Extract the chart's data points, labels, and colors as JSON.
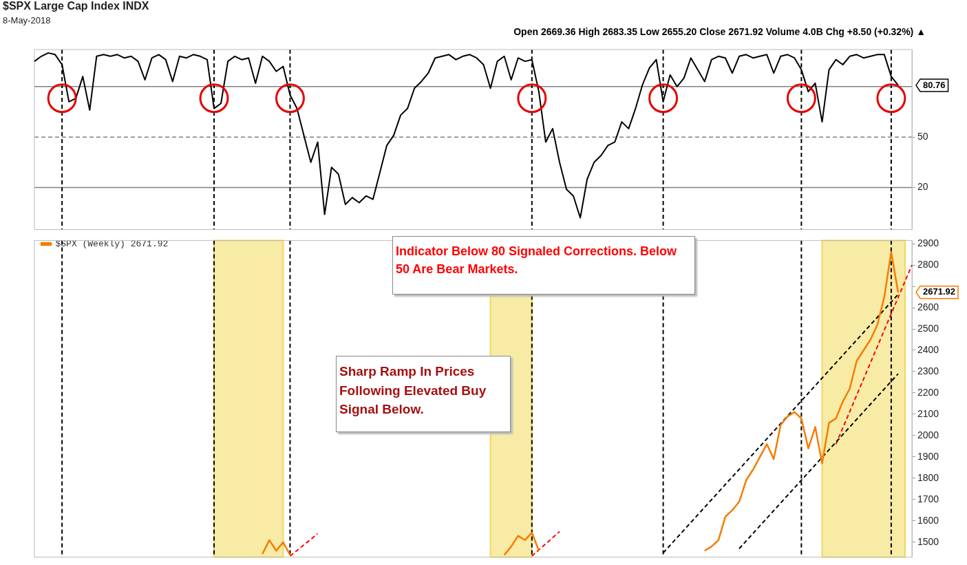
{
  "chart_data": [
    {
      "type": "line",
      "title": "$SPX Large Cap Index INDX",
      "subtitle": "8-May-2018",
      "annotations": [
        "Open 2669.36 High 2683.35 Low 2655.20 Close 2671.92 Volume 4.0B Chg +8.50 (+0.32%) ▲",
        "Indicator Below 80 Signaled Corrections. Below 50 Are Bear Markets.",
        "80.76"
      ],
      "categories": [
        null,
        null,
        null,
        null,
        null,
        null,
        null,
        null,
        null,
        null,
        null,
        null,
        null,
        null,
        null,
        null,
        null,
        null,
        null,
        null,
        null,
        null,
        null,
        null,
        null,
        null,
        null,
        null,
        null,
        null,
        null,
        null,
        null,
        null,
        null,
        null,
        null,
        null,
        null,
        null,
        null,
        null,
        null,
        null,
        null,
        null,
        null,
        null,
        null,
        null,
        null,
        null,
        null,
        null,
        null,
        null,
        null,
        null,
        null,
        null,
        null,
        null,
        null,
        null,
        null,
        null,
        null,
        null,
        null,
        null,
        null,
        null,
        null,
        null,
        null,
        null,
        null,
        null,
        null,
        null,
        null,
        null,
        null,
        null,
        null,
        null,
        null,
        null,
        null,
        null,
        null,
        null,
        null,
        null,
        null,
        null,
        null,
        null,
        null,
        null,
        null,
        null,
        null,
        null,
        null,
        null,
        null,
        null,
        null,
        null,
        null,
        null,
        null,
        null,
        null,
        null,
        null,
        null,
        null,
        null,
        null,
        null,
        null,
        null,
        null,
        null,
        null,
        null
      ],
      "series": [
        {
          "color": "#000000",
          "values": [
            95,
            98,
            100,
            99,
            93,
            71,
            73,
            86,
            66,
            98,
            99,
            98,
            99,
            97,
            98,
            95,
            84,
            97,
            99,
            96,
            83,
            98,
            97,
            99,
            98,
            96,
            67,
            70,
            95,
            98,
            96,
            97,
            82,
            98,
            95,
            89,
            92,
            75,
            67,
            51,
            35,
            47,
            4,
            32,
            28,
            10,
            14,
            11,
            15,
            13,
            29,
            45,
            51,
            63,
            67,
            79,
            83,
            88,
            97,
            98,
            99,
            96,
            98,
            99,
            97,
            93,
            79,
            95,
            98,
            84,
            97,
            95,
            96,
            77,
            47,
            55,
            35,
            19,
            15,
            2,
            25,
            35,
            39,
            45,
            47,
            59,
            55,
            67,
            81,
            91,
            96,
            71,
            87,
            80,
            85,
            97,
            90,
            83,
            96,
            98,
            97,
            88,
            98,
            99,
            97,
            98,
            99,
            88,
            98,
            99,
            97,
            90,
            77,
            82,
            59,
            90,
            96,
            93,
            98,
            99,
            97,
            98,
            99,
            99,
            86,
            80.76,
            null,
            null
          ]
        }
      ],
      "ylim": [
        -5,
        102
      ],
      "yticks": [
        20,
        50
      ],
      "tick_labels": "y",
      "grid": false,
      "legend": false,
      "marker": "none",
      "ref_lines": [
        {
          "axis": "y",
          "value": 80,
          "color": "#808080",
          "line_style": "solid"
        },
        {
          "axis": "y",
          "value": 50,
          "color": "#808080",
          "line_style": "dashed"
        },
        {
          "axis": "y",
          "value": 20,
          "color": "#808080",
          "line_style": "solid"
        }
      ]
    },
    {
      "type": "line",
      "annotations": [
        "Sharp Ramp In Prices Following Elevated Buy Signal Below.",
        "2671.92"
      ],
      "categories": [
        null,
        null,
        null,
        null,
        null,
        null,
        null,
        null,
        null,
        null,
        null,
        null,
        null,
        null,
        null,
        null,
        null,
        null,
        null,
        null,
        null,
        null,
        null,
        null,
        null,
        null,
        null,
        null,
        null,
        null,
        null,
        null,
        null,
        null,
        null,
        null,
        null,
        null,
        null,
        null,
        null,
        null,
        null,
        null,
        null,
        null,
        null,
        null,
        null,
        null,
        null,
        null,
        null,
        null,
        null,
        null,
        null,
        null,
        null,
        null,
        null,
        null,
        null,
        null,
        null,
        null,
        null,
        null,
        null,
        null,
        null,
        null,
        null,
        null,
        null,
        null,
        null,
        null,
        null,
        null,
        null,
        null,
        null,
        null,
        null,
        null,
        null,
        null,
        null,
        null,
        null,
        null,
        null,
        null,
        null,
        null,
        null,
        null,
        null,
        null,
        null,
        null,
        null,
        null,
        null,
        null,
        null,
        null,
        null,
        null,
        null,
        null,
        null,
        null,
        null,
        null,
        null,
        null,
        null,
        null,
        null,
        null,
        null,
        null,
        null,
        null,
        null,
        null
      ],
      "series": [
        {
          "name": "$SPX (Weekly) 2671.92",
          "color": "#f57c00",
          "values": [
            null,
            null,
            null,
            null,
            null,
            null,
            null,
            null,
            null,
            null,
            null,
            null,
            null,
            null,
            null,
            null,
            null,
            null,
            null,
            null,
            null,
            null,
            null,
            null,
            null,
            null,
            null,
            null,
            null,
            null,
            null,
            null,
            null,
            1445,
            1510,
            1460,
            1500,
            1440,
            null,
            null,
            null,
            null,
            null,
            null,
            null,
            null,
            null,
            null,
            null,
            null,
            null,
            null,
            null,
            null,
            null,
            null,
            null,
            null,
            null,
            null,
            null,
            null,
            null,
            null,
            null,
            null,
            null,
            null,
            1440,
            1480,
            1530,
            1510,
            1545,
            1460,
            null,
            null,
            null,
            null,
            null,
            null,
            null,
            null,
            null,
            null,
            null,
            null,
            null,
            null,
            null,
            null,
            null,
            null,
            null,
            null,
            null,
            null,
            null,
            1460,
            1480,
            1510,
            1620,
            1650,
            1690,
            1790,
            1840,
            1900,
            1960,
            1890,
            2050,
            2090,
            2110,
            2080,
            1940,
            2040,
            1870,
            2060,
            2080,
            2160,
            2220,
            2350,
            2400,
            2450,
            2520,
            2650,
            2860,
            2671.92,
            null,
            null
          ]
        },
        {
          "type": "line",
          "color": "#000000",
          "line_style": "dashed",
          "values": [
            null,
            null,
            null,
            null,
            null,
            null,
            null,
            null,
            null,
            null,
            null,
            null,
            null,
            null,
            null,
            null,
            null,
            null,
            null,
            null,
            null,
            null,
            null,
            null,
            null,
            null,
            null,
            null,
            null,
            null,
            null,
            null,
            null,
            null,
            null,
            null,
            null,
            null,
            null,
            null,
            null,
            null,
            null,
            null,
            null,
            null,
            null,
            null,
            null,
            null,
            null,
            null,
            null,
            null,
            null,
            null,
            null,
            null,
            null,
            null,
            null,
            null,
            null,
            null,
            null,
            null,
            null,
            null,
            null,
            null,
            null,
            null,
            null,
            null,
            null,
            null,
            null,
            null,
            null,
            null,
            null,
            null,
            null,
            null,
            null,
            null,
            null,
            null,
            null,
            null,
            null,
            1450,
            null,
            null,
            null,
            null,
            null,
            null,
            null,
            null,
            null,
            null,
            null,
            null,
            null,
            null,
            null,
            null,
            null,
            null,
            null,
            null,
            null,
            null,
            null,
            null,
            null,
            null,
            null,
            null,
            null,
            null,
            null,
            null,
            null,
            2662,
            null,
            null
          ]
        },
        {
          "type": "line",
          "color": "#000000",
          "line_style": "dashed",
          "values": [
            null,
            null,
            null,
            null,
            null,
            null,
            null,
            null,
            null,
            null,
            null,
            null,
            null,
            null,
            null,
            null,
            null,
            null,
            null,
            null,
            null,
            null,
            null,
            null,
            null,
            null,
            null,
            null,
            null,
            null,
            null,
            null,
            null,
            null,
            null,
            null,
            null,
            null,
            null,
            null,
            null,
            null,
            null,
            null,
            null,
            null,
            null,
            null,
            null,
            null,
            null,
            null,
            null,
            null,
            null,
            null,
            null,
            null,
            null,
            null,
            null,
            null,
            null,
            null,
            null,
            null,
            null,
            null,
            null,
            null,
            null,
            null,
            null,
            null,
            null,
            null,
            null,
            null,
            null,
            null,
            null,
            null,
            null,
            null,
            null,
            null,
            null,
            null,
            null,
            null,
            null,
            null,
            null,
            null,
            null,
            null,
            null,
            null,
            null,
            null,
            null,
            null,
            1470,
            null,
            null,
            null,
            null,
            null,
            null,
            null,
            null,
            null,
            null,
            null,
            null,
            null,
            null,
            null,
            null,
            null,
            null,
            null,
            null,
            null,
            null,
            2290,
            null,
            null
          ]
        },
        {
          "type": "line",
          "color": "#ff0000",
          "line_style": "dashed",
          "values": [
            null,
            null,
            null,
            null,
            null,
            null,
            null,
            null,
            null,
            null,
            null,
            null,
            null,
            null,
            null,
            null,
            null,
            null,
            null,
            null,
            null,
            null,
            null,
            null,
            null,
            null,
            null,
            null,
            null,
            null,
            null,
            null,
            null,
            null,
            null,
            null,
            null,
            null,
            null,
            null,
            null,
            null,
            null,
            null,
            null,
            null,
            null,
            null,
            null,
            null,
            null,
            null,
            null,
            null,
            null,
            null,
            null,
            null,
            null,
            null,
            null,
            null,
            null,
            null,
            null,
            null,
            null,
            null,
            null,
            null,
            null,
            null,
            null,
            null,
            null,
            null,
            null,
            null,
            null,
            null,
            null,
            null,
            null,
            null,
            null,
            null,
            null,
            null,
            null,
            null,
            null,
            null,
            null,
            null,
            null,
            null,
            null,
            null,
            null,
            null,
            null,
            null,
            null,
            null,
            null,
            null,
            null,
            null,
            null,
            null,
            null,
            null,
            null,
            null,
            null,
            null,
            1960,
            null,
            null,
            null,
            null,
            null,
            null,
            null,
            null,
            null,
            null,
            2800
          ]
        },
        {
          "type": "line",
          "color": "#ff0000",
          "line_style": "dashed",
          "values": [
            null,
            null,
            null,
            null,
            null,
            null,
            null,
            null,
            null,
            null,
            null,
            null,
            null,
            null,
            null,
            null,
            null,
            null,
            null,
            null,
            null,
            null,
            null,
            null,
            null,
            null,
            null,
            null,
            null,
            null,
            null,
            null,
            null,
            null,
            null,
            null,
            null,
            1435,
            null,
            null,
            null,
            1540,
            null,
            null,
            null,
            null,
            null,
            null,
            null,
            null,
            null,
            null,
            null,
            null,
            null,
            null,
            null,
            null,
            null,
            null,
            null,
            null,
            null,
            null,
            null,
            null,
            null,
            null,
            null,
            null,
            null,
            null,
            null,
            null,
            null,
            null,
            null,
            null,
            null,
            null,
            null,
            null,
            null,
            null,
            null,
            null,
            null,
            null,
            null,
            null,
            null,
            null,
            null,
            null,
            null,
            null,
            null,
            null,
            null,
            null,
            null,
            null,
            null,
            null,
            null,
            null,
            null,
            null,
            null,
            null,
            null,
            null,
            null,
            null,
            null,
            null,
            null,
            null,
            null,
            null,
            null,
            null,
            null,
            null,
            null,
            null,
            null,
            null
          ]
        },
        {
          "type": "line",
          "color": "#ff0000",
          "line_style": "dashed",
          "values": [
            null,
            null,
            null,
            null,
            null,
            null,
            null,
            null,
            null,
            null,
            null,
            null,
            null,
            null,
            null,
            null,
            null,
            null,
            null,
            null,
            null,
            null,
            null,
            null,
            null,
            null,
            null,
            null,
            null,
            null,
            null,
            null,
            null,
            null,
            null,
            null,
            null,
            null,
            null,
            null,
            null,
            null,
            null,
            null,
            null,
            null,
            null,
            null,
            null,
            null,
            null,
            null,
            null,
            null,
            null,
            null,
            null,
            null,
            null,
            null,
            null,
            null,
            null,
            null,
            null,
            null,
            null,
            null,
            null,
            null,
            null,
            null,
            1435,
            null,
            null,
            null,
            1550,
            null,
            null,
            null,
            null,
            null,
            null,
            null,
            null,
            null,
            null,
            null,
            null,
            null,
            null,
            null,
            null,
            null,
            null,
            null,
            null,
            null,
            null,
            null,
            null,
            null,
            null,
            null,
            null,
            null,
            null,
            null,
            null,
            null,
            null,
            null,
            null,
            null,
            null,
            null,
            null,
            null,
            null,
            null,
            null,
            null,
            null,
            null,
            null,
            null,
            null,
            null
          ]
        }
      ],
      "ylim": [
        1430,
        2915
      ],
      "yticks": [
        1500,
        1600,
        1700,
        1800,
        1900,
        2000,
        2100,
        2200,
        2300,
        2400,
        2500,
        2600,
        {
          "value": 2700,
          "label": null
        },
        2800,
        2900
      ],
      "tick_labels": "y",
      "grid": false,
      "legend": "top left",
      "marker": "none"
    }
  ]
}
